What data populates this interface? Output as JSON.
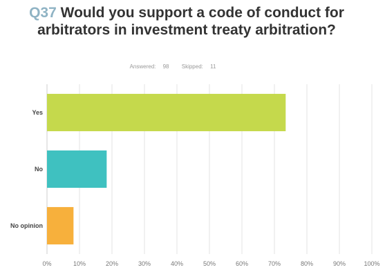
{
  "question": {
    "number": "Q37",
    "text": "Would you support a code of conduct for arbitrators in investment treaty arbitration?"
  },
  "meta": {
    "answered_label": "Answered:",
    "answered_value": "98",
    "skipped_label": "Skipped:",
    "skipped_value": "11"
  },
  "chart_data": {
    "type": "bar",
    "orientation": "horizontal",
    "categories": [
      "Yes",
      "No",
      "No opinion"
    ],
    "values": [
      73.47,
      18.37,
      8.16
    ],
    "colors": [
      "#c5d94c",
      "#3fc1c0",
      "#f7b03c"
    ],
    "xlim": [
      0,
      100
    ],
    "x_tick_labels": [
      "0%",
      "10%",
      "20%",
      "30%",
      "40%",
      "50%",
      "60%",
      "70%",
      "80%",
      "90%",
      "100%"
    ],
    "grid": true
  }
}
